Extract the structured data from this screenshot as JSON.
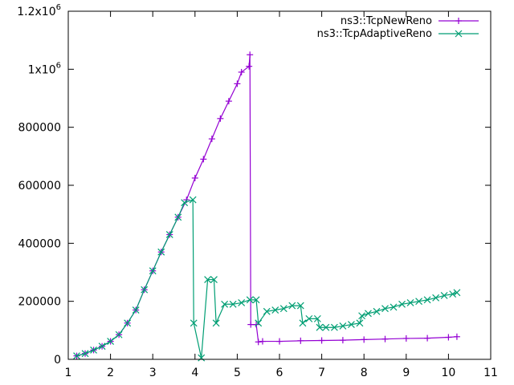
{
  "chart_data": {
    "type": "line",
    "title": "",
    "xlabel": "",
    "ylabel": "",
    "xlim": [
      1,
      11
    ],
    "ylim": [
      0,
      1200000
    ],
    "grid": false,
    "legend_position": "top-right",
    "x_ticks": [
      {
        "value": 1,
        "label": "1"
      },
      {
        "value": 2,
        "label": "2"
      },
      {
        "value": 3,
        "label": "3"
      },
      {
        "value": 4,
        "label": "4"
      },
      {
        "value": 5,
        "label": "5"
      },
      {
        "value": 6,
        "label": "6"
      },
      {
        "value": 7,
        "label": "7"
      },
      {
        "value": 8,
        "label": "8"
      },
      {
        "value": 9,
        "label": "9"
      },
      {
        "value": 10,
        "label": "10"
      },
      {
        "value": 11,
        "label": "11"
      }
    ],
    "y_ticks": [
      {
        "value": 0,
        "label": "0"
      },
      {
        "value": 200000,
        "label": "200000"
      },
      {
        "value": 400000,
        "label": "400000"
      },
      {
        "value": 600000,
        "label": "600000"
      },
      {
        "value": 800000,
        "label": "800000"
      },
      {
        "value": 1000000,
        "label": "1x10",
        "sup": "6"
      },
      {
        "value": 1200000,
        "label": "1.2x10",
        "sup": "6"
      }
    ],
    "series": [
      {
        "name": "ns3::TcpNewReno",
        "color": "#9400d3",
        "marker": "plus",
        "points": [
          [
            1.2,
            12000
          ],
          [
            1.4,
            20000
          ],
          [
            1.6,
            32000
          ],
          [
            1.8,
            45000
          ],
          [
            2.0,
            62000
          ],
          [
            2.2,
            85000
          ],
          [
            2.4,
            125000
          ],
          [
            2.6,
            170000
          ],
          [
            2.8,
            240000
          ],
          [
            3.0,
            305000
          ],
          [
            3.2,
            370000
          ],
          [
            3.4,
            430000
          ],
          [
            3.6,
            490000
          ],
          [
            3.8,
            550000
          ],
          [
            4.0,
            625000
          ],
          [
            4.2,
            690000
          ],
          [
            4.4,
            760000
          ],
          [
            4.6,
            830000
          ],
          [
            4.8,
            890000
          ],
          [
            5.0,
            950000
          ],
          [
            5.1,
            990000
          ],
          [
            5.28,
            1010000
          ],
          [
            5.3,
            1050000
          ],
          [
            5.32,
            120000
          ],
          [
            5.45,
            120000
          ],
          [
            5.5,
            60000
          ],
          [
            5.6,
            62000
          ],
          [
            6.0,
            62000
          ],
          [
            6.5,
            64000
          ],
          [
            7.0,
            65000
          ],
          [
            7.5,
            66000
          ],
          [
            8.0,
            68000
          ],
          [
            8.5,
            70000
          ],
          [
            9.0,
            72000
          ],
          [
            9.5,
            73000
          ],
          [
            10.0,
            76000
          ],
          [
            10.2,
            78000
          ]
        ]
      },
      {
        "name": "ns3::TcpAdaptiveReno",
        "color": "#009e73",
        "marker": "cross",
        "points": [
          [
            1.2,
            12000
          ],
          [
            1.4,
            20000
          ],
          [
            1.6,
            32000
          ],
          [
            1.8,
            45000
          ],
          [
            2.0,
            62000
          ],
          [
            2.2,
            85000
          ],
          [
            2.4,
            125000
          ],
          [
            2.6,
            170000
          ],
          [
            2.8,
            240000
          ],
          [
            3.0,
            305000
          ],
          [
            3.2,
            370000
          ],
          [
            3.4,
            430000
          ],
          [
            3.6,
            490000
          ],
          [
            3.75,
            540000
          ],
          [
            3.95,
            550000
          ],
          [
            3.97,
            125000
          ],
          [
            4.15,
            5000
          ],
          [
            4.3,
            275000
          ],
          [
            4.45,
            275000
          ],
          [
            4.5,
            125000
          ],
          [
            4.7,
            190000
          ],
          [
            4.9,
            190000
          ],
          [
            5.1,
            195000
          ],
          [
            5.3,
            205000
          ],
          [
            5.45,
            205000
          ],
          [
            5.5,
            125000
          ],
          [
            5.7,
            165000
          ],
          [
            5.9,
            170000
          ],
          [
            6.1,
            175000
          ],
          [
            6.3,
            185000
          ],
          [
            6.5,
            185000
          ],
          [
            6.55,
            125000
          ],
          [
            6.7,
            140000
          ],
          [
            6.9,
            140000
          ],
          [
            6.95,
            110000
          ],
          [
            7.1,
            110000
          ],
          [
            7.3,
            110000
          ],
          [
            7.5,
            115000
          ],
          [
            7.7,
            120000
          ],
          [
            7.9,
            125000
          ],
          [
            7.95,
            150000
          ],
          [
            8.1,
            158000
          ],
          [
            8.3,
            165000
          ],
          [
            8.5,
            175000
          ],
          [
            8.7,
            180000
          ],
          [
            8.9,
            190000
          ],
          [
            9.1,
            195000
          ],
          [
            9.3,
            200000
          ],
          [
            9.5,
            205000
          ],
          [
            9.7,
            212000
          ],
          [
            9.9,
            220000
          ],
          [
            10.1,
            225000
          ],
          [
            10.2,
            230000
          ]
        ]
      }
    ]
  }
}
